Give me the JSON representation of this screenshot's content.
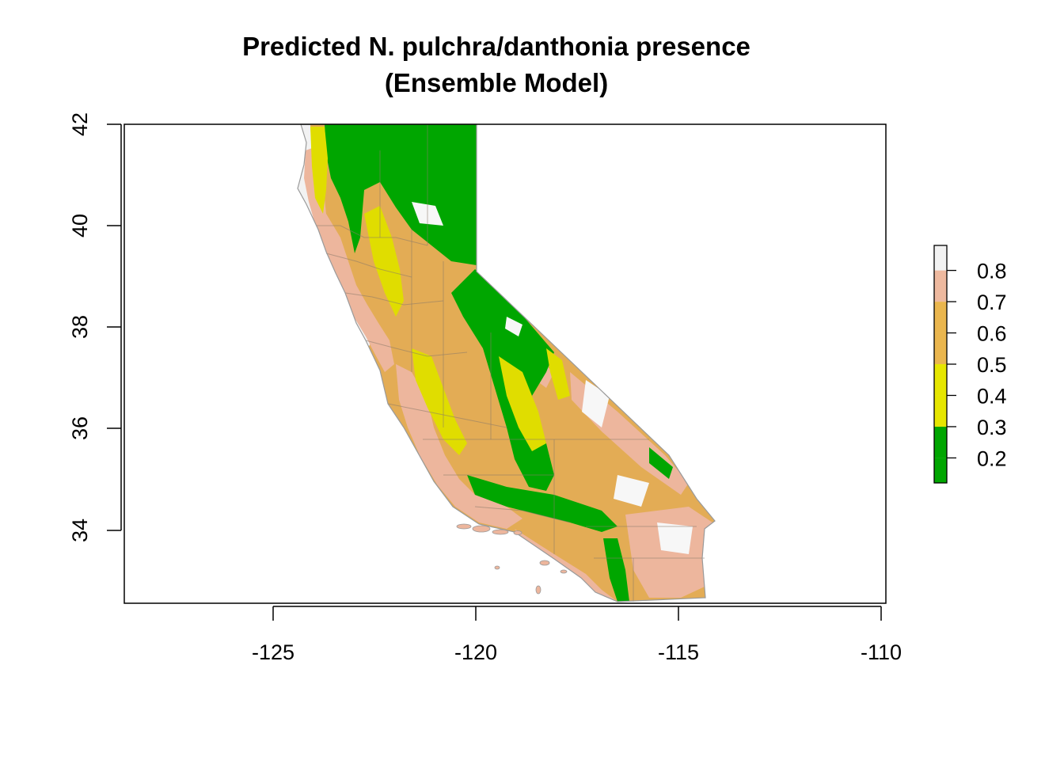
{
  "title": {
    "line1": "Predicted N. pulchra/danthonia presence",
    "line2": "(Ensemble Model)"
  },
  "map": {
    "region": "California",
    "x_axis": {
      "ticks": [
        -125,
        -120,
        -115,
        -110
      ],
      "range": [
        -128.7,
        -109.8
      ]
    },
    "y_axis": {
      "ticks": [
        42,
        40,
        38,
        36,
        34
      ],
      "range": [
        32.55,
        42.0
      ]
    }
  },
  "legend": {
    "labels": [
      "0.8",
      "0.7",
      "0.6",
      "0.5",
      "0.4",
      "0.3",
      "0.2"
    ],
    "breaks": [
      0.12,
      0.2,
      0.3,
      0.4,
      0.5,
      0.6,
      0.7,
      0.8,
      0.88
    ],
    "colors": [
      "#00A600",
      "#00A600",
      "#E6E600",
      "#E6E600",
      "#EAB64E",
      "#EAB64E",
      "#EEB99F",
      "#EEB99F",
      "#F2F2F2"
    ],
    "classes": [
      {
        "from": 0.12,
        "to": 0.2,
        "color": "#00A600"
      },
      {
        "from": 0.2,
        "to": 0.3,
        "color": "#00A600"
      },
      {
        "from": 0.3,
        "to": 0.4,
        "color": "#E6E600"
      },
      {
        "from": 0.4,
        "to": 0.5,
        "color": "#E6E600"
      },
      {
        "from": 0.5,
        "to": 0.6,
        "color": "#EAB64E"
      },
      {
        "from": 0.6,
        "to": 0.7,
        "color": "#EAB64E"
      },
      {
        "from": 0.7,
        "to": 0.8,
        "color": "#EEB99F"
      },
      {
        "from": 0.8,
        "to": 0.88,
        "color": "#F2F2F2"
      }
    ]
  }
}
